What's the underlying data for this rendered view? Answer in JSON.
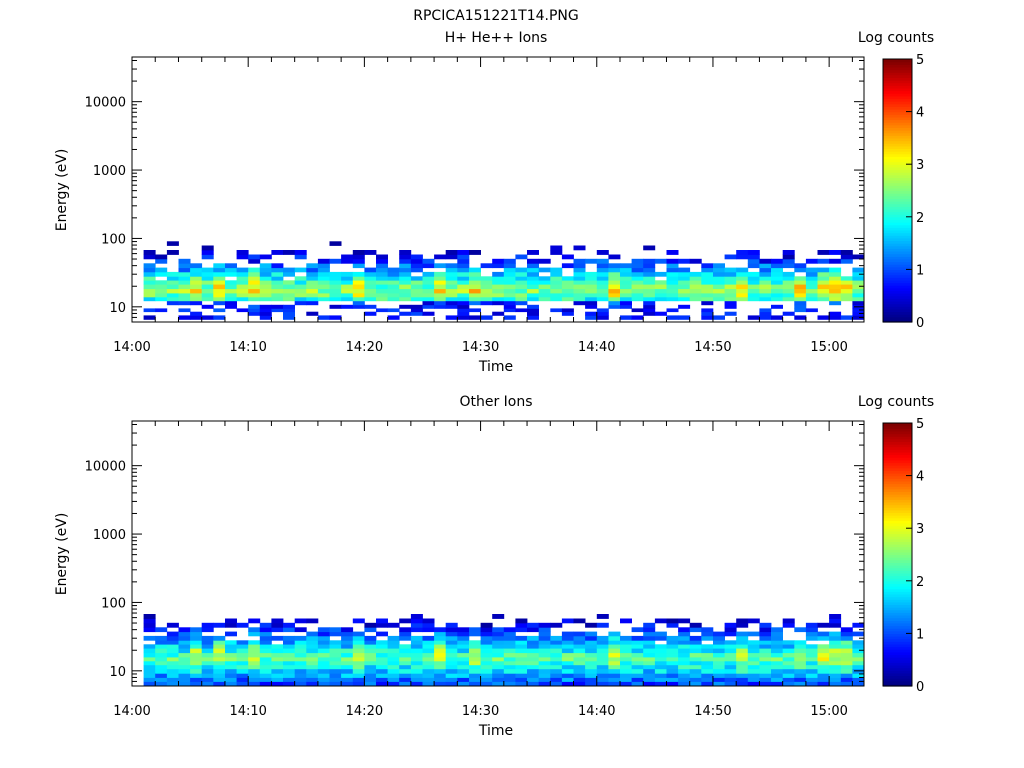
{
  "page": {
    "title": "RPCICA151221T14.PNG"
  },
  "colorscale": {
    "stops": [
      "#00007f",
      "#0000ff",
      "#0080ff",
      "#00ffff",
      "#80ff80",
      "#ffff00",
      "#ff8000",
      "#ff0000",
      "#7f0000"
    ],
    "range": [
      0,
      5
    ]
  },
  "chart_data": [
    {
      "type": "heatmap",
      "title": "H+ He++ Ions",
      "xlabel": "Time",
      "ylabel": "Energy (eV)",
      "colorbar_label": "Log counts",
      "x_ticks": [
        "14:00",
        "14:10",
        "14:20",
        "14:30",
        "14:40",
        "14:50",
        "15:00"
      ],
      "y_ticks": [
        "10",
        "100",
        "1000",
        "10000"
      ],
      "y_scale": "log",
      "y_range": [
        6,
        45000
      ],
      "x_range": [
        "14:00",
        "15:03"
      ],
      "colorbar_ticks": [
        "0",
        "1",
        "2",
        "3",
        "4",
        "5"
      ],
      "colorbar_range": [
        0,
        5
      ],
      "data_time_range": [
        "14:01",
        "15:03"
      ],
      "energy_bins_ev": [
        7,
        8,
        9,
        10,
        11.5,
        13,
        15,
        17,
        20,
        23,
        26,
        30,
        35,
        40,
        47,
        54,
        63,
        73,
        85,
        97
      ],
      "approx_peak_log_counts": 3.8
    },
    {
      "type": "heatmap",
      "title": "Other Ions",
      "xlabel": "Time",
      "ylabel": "Energy (eV)",
      "colorbar_label": "Log counts",
      "x_ticks": [
        "14:00",
        "14:10",
        "14:20",
        "14:30",
        "14:40",
        "14:50",
        "15:00"
      ],
      "y_ticks": [
        "10",
        "100",
        "1000",
        "10000"
      ],
      "y_scale": "log",
      "y_range": [
        6,
        45000
      ],
      "x_range": [
        "14:00",
        "15:03"
      ],
      "colorbar_ticks": [
        "0",
        "1",
        "2",
        "3",
        "4",
        "5"
      ],
      "colorbar_range": [
        0,
        5
      ],
      "data_time_range": [
        "14:01",
        "15:03"
      ],
      "energy_bins_ev": [
        6.5,
        7.5,
        8.5,
        10,
        11.5,
        13,
        15,
        17,
        20,
        23,
        26,
        30,
        35,
        40,
        47,
        54,
        63,
        73,
        85,
        97
      ],
      "approx_peak_log_counts": 3.7
    }
  ]
}
